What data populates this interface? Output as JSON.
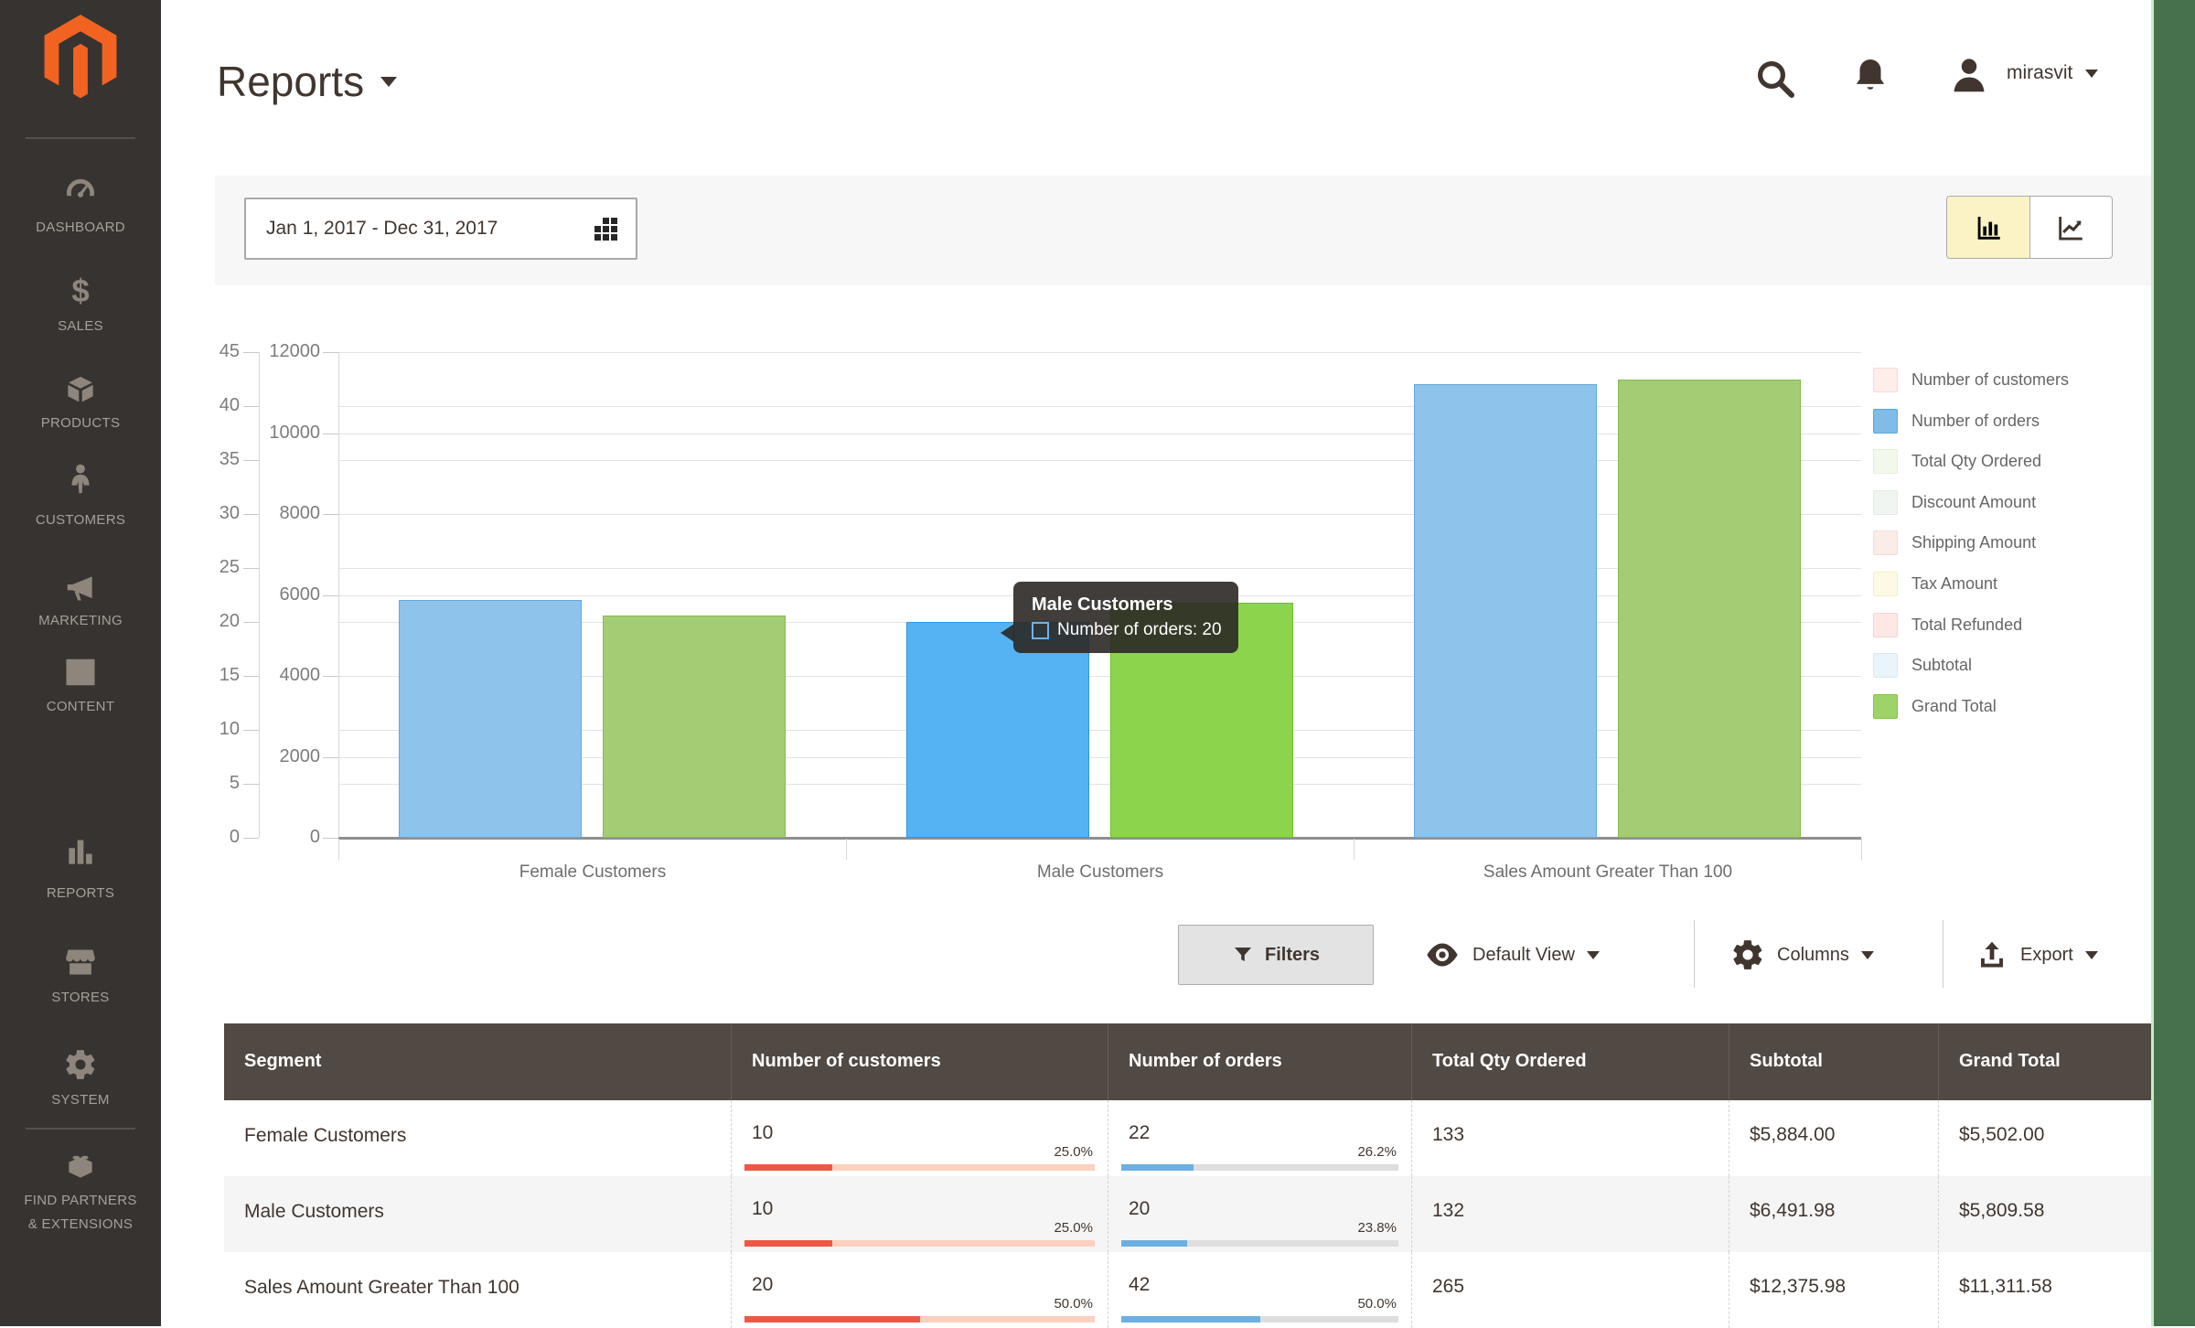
{
  "header": {
    "title": "Reports",
    "user": "mirasvit"
  },
  "sidebar": {
    "items": [
      {
        "id": "dashboard",
        "label": "DASHBOARD",
        "icon": "gauge-icon"
      },
      {
        "id": "sales",
        "label": "SALES",
        "icon": "dollar-icon"
      },
      {
        "id": "products",
        "label": "PRODUCTS",
        "icon": "box-icon"
      },
      {
        "id": "customers",
        "label": "CUSTOMERS",
        "icon": "person-icon"
      },
      {
        "id": "marketing",
        "label": "MARKETING",
        "icon": "megaphone-icon"
      },
      {
        "id": "content",
        "label": "CONTENT",
        "icon": "layout-icon"
      },
      {
        "id": "reports",
        "label": "REPORTS",
        "icon": "bar-chart-icon"
      },
      {
        "id": "stores",
        "label": "STORES",
        "icon": "store-icon"
      },
      {
        "id": "system",
        "label": "SYSTEM",
        "icon": "gear-icon"
      },
      {
        "id": "find-partners",
        "label": "FIND PARTNERS\n& EXTENSIONS",
        "icon": "brick-icon"
      }
    ]
  },
  "filter_panel": {
    "date_range": "Jan 1, 2017 - Dec 31, 2017",
    "views": [
      {
        "id": "bar-view",
        "icon": "bar-chart-view-icon",
        "active": true
      },
      {
        "id": "line-view",
        "icon": "line-chart-view-icon",
        "active": false
      }
    ]
  },
  "chart_data": {
    "type": "bar",
    "categories": [
      "Female Customers",
      "Male Customers",
      "Sales Amount Greater Than 100"
    ],
    "axes": {
      "left": {
        "min": 0,
        "max": 45,
        "step": 5,
        "ticks": [
          0,
          5,
          10,
          15,
          20,
          25,
          30,
          35,
          40,
          45
        ]
      },
      "right": {
        "min": 0,
        "max": 12000,
        "step": 2000,
        "ticks": [
          0,
          2000,
          4000,
          6000,
          8000,
          10000,
          12000
        ]
      }
    },
    "series": [
      {
        "name": "Number of orders",
        "axis": "left",
        "values": [
          22,
          20,
          42
        ],
        "fill": "#8ec3eb",
        "border": "#66a8da",
        "hover_fill": "#55b2f3",
        "hover_border": "#2f97ea"
      },
      {
        "name": "Grand Total",
        "axis": "right",
        "values": [
          5502.0,
          5809.58,
          11311.58
        ],
        "fill": "#a3cd75",
        "border": "#86ba52",
        "hover_fill": "#8dd44d",
        "hover_border": "#6cc228"
      }
    ],
    "highlighted_index": 1,
    "legend": [
      {
        "label": "Number of customers",
        "fill": "#fdeeea",
        "border": "#f6d9d5"
      },
      {
        "label": "Number of orders",
        "fill": "#7fbce8",
        "border": "#5aa7e0"
      },
      {
        "label": "Total Qty Ordered",
        "fill": "#f2f9ec",
        "border": "#e4f0d8"
      },
      {
        "label": "Discount Amount",
        "fill": "#f1f5f1",
        "border": "#e3ebe3"
      },
      {
        "label": "Shipping Amount",
        "fill": "#faece7",
        "border": "#f2dcd4"
      },
      {
        "label": "Tax Amount",
        "fill": "#fdf9e4",
        "border": "#f5eecb"
      },
      {
        "label": "Total Refunded",
        "fill": "#fde8e5",
        "border": "#f8d5d0"
      },
      {
        "label": "Subtotal",
        "fill": "#eaf4fb",
        "border": "#d8e9f5"
      },
      {
        "label": "Grand Total",
        "fill": "#9ed36a",
        "border": "#85c24a"
      }
    ],
    "legend_position": "right",
    "grid": true,
    "tooltip": {
      "title": "Male Customers",
      "text": "Number of orders: 20",
      "series": "Number of orders",
      "value": 20
    }
  },
  "toolbar": {
    "filters": "Filters",
    "default_view": "Default View",
    "columns": "Columns",
    "export": "Export"
  },
  "table": {
    "columns": [
      "Segment",
      "Number of customers",
      "Number of orders",
      "Total Qty Ordered",
      "Subtotal",
      "Grand Total"
    ],
    "bar_colors": {
      "customers": {
        "fill": "#eb5945",
        "track": "#fbd0bf"
      },
      "orders": {
        "fill": "#6cafe0",
        "track": "#dedede"
      }
    },
    "rows": [
      {
        "segment": "Female Customers",
        "customers": {
          "value": "10",
          "pct": "25.0%",
          "frac": 0.25
        },
        "orders": {
          "value": "22",
          "pct": "26.2%",
          "frac": 0.262
        },
        "qty": "133",
        "subtotal": "$5,884.00",
        "grand_total": "$5,502.00"
      },
      {
        "segment": "Male Customers",
        "customers": {
          "value": "10",
          "pct": "25.0%",
          "frac": 0.25
        },
        "orders": {
          "value": "20",
          "pct": "23.8%",
          "frac": 0.238
        },
        "qty": "132",
        "subtotal": "$6,491.98",
        "grand_total": "$5,809.58"
      },
      {
        "segment": "Sales Amount Greater Than 100",
        "customers": {
          "value": "20",
          "pct": "50.0%",
          "frac": 0.5
        },
        "orders": {
          "value": "42",
          "pct": "50.0%",
          "frac": 0.5
        },
        "qty": "265",
        "subtotal": "$12,375.98",
        "grand_total": "$11,311.58"
      }
    ]
  }
}
